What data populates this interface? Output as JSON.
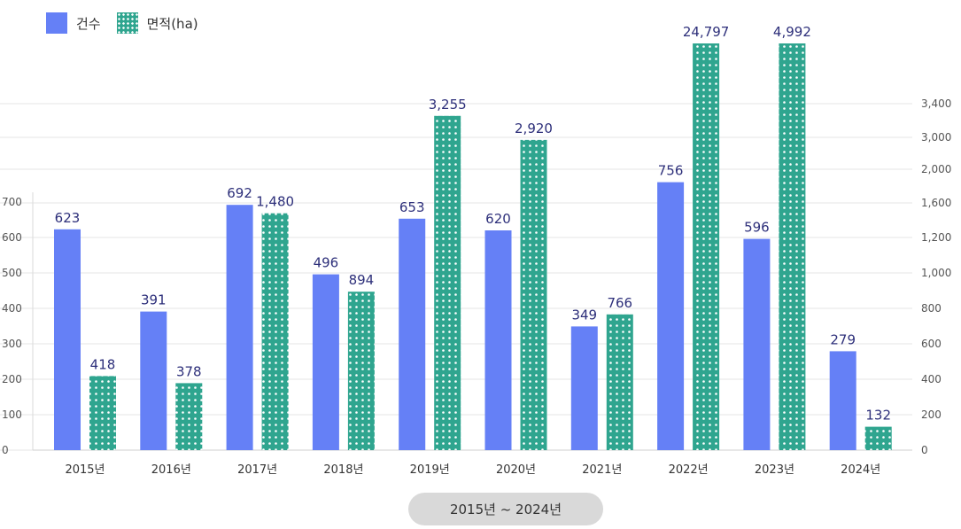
{
  "legend": {
    "count_label": "건수",
    "area_label": "면적(ha)"
  },
  "period_label": "2015년 ~ 2024년",
  "colors": {
    "count": "#6580f6",
    "area": "#2fa58f",
    "value_label": "#2d2f7a",
    "grid": "#e6e6e6"
  },
  "chart_data": {
    "type": "bar",
    "title": "",
    "categories": [
      "2015년",
      "2016년",
      "2017년",
      "2018년",
      "2019년",
      "2020년",
      "2021년",
      "2022년",
      "2023년",
      "2024년"
    ],
    "series": [
      {
        "name": "건수",
        "axis": "left",
        "values": [
          623,
          391,
          692,
          496,
          653,
          620,
          349,
          756,
          596,
          279
        ]
      },
      {
        "name": "면적(ha)",
        "axis": "right",
        "values": [
          418,
          378,
          1480,
          894,
          3255,
          2920,
          766,
          24797,
          4992,
          132
        ]
      }
    ],
    "left_axis": {
      "ticks": [
        0,
        100,
        200,
        300,
        400,
        500,
        600,
        700
      ],
      "tick_labels": [
        "0",
        "100",
        "200",
        "300",
        "400",
        "500",
        "600",
        "700"
      ]
    },
    "right_axis": {
      "tick_labels": [
        "0",
        "200",
        "400",
        "600",
        "800",
        "1,000",
        "1,200",
        "1,600",
        "2,000",
        "3,000",
        "3,400"
      ]
    },
    "grid": true
  }
}
